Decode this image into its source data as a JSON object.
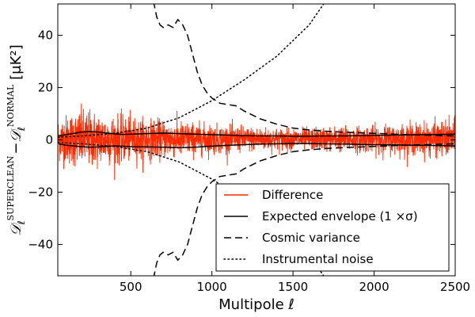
{
  "chart_data": {
    "type": "line",
    "title": "",
    "xlabel": "Multipole ℓ",
    "ylabel_parts": {
      "d1": "𝒟",
      "sup1": "SUPERCLEAN",
      "minus": "−",
      "d2": "𝒟",
      "sup2": "NORMAL",
      "sub": "ℓ",
      "unit": "[μK²]"
    },
    "xlim": [
      50,
      2500
    ],
    "ylim": [
      -52,
      52
    ],
    "xticks": [
      500,
      1000,
      1500,
      2000,
      2500
    ],
    "xtick_labels": [
      "500",
      "1000",
      "1500",
      "2000",
      "2500"
    ],
    "yticks": [
      -40,
      -20,
      0,
      20,
      40
    ],
    "ytick_labels": [
      "−40",
      "−20",
      "0",
      "20",
      "40"
    ],
    "legend_position": "lower-right",
    "series": [
      {
        "name": "Difference",
        "style": "solid",
        "color": "#ff2a00",
        "description_points": {
          "x": [
            50,
            100,
            200,
            300,
            400,
            500,
            700,
            900,
            1100,
            1300,
            1500,
            1700,
            2000,
            2300,
            2500
          ],
          "std": [
            4.0,
            4.5,
            5.5,
            5.0,
            4.5,
            4.0,
            3.5,
            3.0,
            2.5,
            2.2,
            2.0,
            2.2,
            2.5,
            3.0,
            3.5
          ]
        }
      },
      {
        "name": "Expected envelope (1 ×σ)",
        "style": "solid",
        "color": "#000000",
        "upper": {
          "x": [
            55,
            100,
            150,
            200,
            250,
            300,
            350,
            400,
            450,
            500,
            600,
            700,
            800,
            900,
            1000,
            1100,
            1200,
            1300,
            1400,
            1500,
            1600,
            1700,
            1800,
            1900,
            2000,
            2100,
            2200,
            2300,
            2400,
            2500
          ],
          "y": [
            1.5,
            2.0,
            2.5,
            3.0,
            3.2,
            3.0,
            2.6,
            2.3,
            2.1,
            2.2,
            2.4,
            2.6,
            2.4,
            2.2,
            2.0,
            1.8,
            1.6,
            1.5,
            1.5,
            1.4,
            1.4,
            1.5,
            1.5,
            1.6,
            1.7,
            1.8,
            1.9,
            2.0,
            2.1,
            2.2
          ]
        },
        "lower": {
          "x": [
            55,
            100,
            150,
            200,
            250,
            300,
            350,
            400,
            450,
            500,
            600,
            700,
            800,
            900,
            1000,
            1100,
            1200,
            1300,
            1400,
            1500,
            1600,
            1700,
            1800,
            1900,
            2000,
            2100,
            2200,
            2300,
            2400,
            2500
          ],
          "y": [
            -1.5,
            -2.0,
            -2.3,
            -2.6,
            -2.8,
            -2.7,
            -2.5,
            -2.3,
            -2.4,
            -2.6,
            -2.7,
            -2.8,
            -3.0,
            -2.8,
            -2.4,
            -2.1,
            -1.8,
            -1.6,
            -1.5,
            -1.4,
            -1.4,
            -1.5,
            -1.6,
            -1.7,
            -1.8,
            -1.9,
            -2.0,
            -2.1,
            -2.2,
            -2.3
          ]
        }
      },
      {
        "name": "Cosmic variance",
        "style": "dashed",
        "color": "#000000",
        "upper": {
          "x": [
            640,
            660,
            680,
            700,
            730,
            760,
            790,
            820,
            850,
            880,
            910,
            940,
            970,
            1000,
            1050,
            1100,
            1150,
            1200,
            1300,
            1400,
            1500,
            1600,
            1700,
            1800,
            2000,
            2200,
            2500
          ],
          "y": [
            53,
            47,
            44,
            43,
            44,
            43,
            46,
            44,
            40,
            33,
            26,
            21,
            18,
            16,
            14,
            13.5,
            13,
            11,
            8,
            6,
            4.5,
            3.8,
            3.3,
            3.0,
            2.5,
            2.0,
            1.5
          ]
        },
        "lower": {
          "x": [
            640,
            660,
            680,
            700,
            730,
            760,
            790,
            820,
            850,
            880,
            910,
            940,
            970,
            1000,
            1050,
            1100,
            1150,
            1200,
            1300,
            1400,
            1500,
            1600,
            1700,
            1800,
            2000,
            2200,
            2500
          ],
          "y": [
            -53,
            -47,
            -44,
            -43,
            -44,
            -43,
            -46,
            -44,
            -40,
            -33,
            -26,
            -21,
            -18,
            -16,
            -14,
            -13.5,
            -13,
            -11,
            -8,
            -6,
            -4.5,
            -3.8,
            -3.3,
            -3.0,
            -2.5,
            -2.0,
            -1.5
          ]
        }
      },
      {
        "name": "Instrumental noise",
        "style": "dotted",
        "color": "#000000",
        "upper": {
          "x": [
            50,
            200,
            400,
            600,
            800,
            1000,
            1200,
            1400,
            1600,
            1700
          ],
          "y": [
            1.0,
            1.5,
            2.5,
            4.5,
            8.5,
            15,
            23,
            32,
            44,
            53
          ]
        },
        "lower": {
          "x": [
            50,
            200,
            400,
            600,
            800,
            1000,
            1200,
            1400,
            1600,
            1700
          ],
          "y": [
            -1.0,
            -1.5,
            -2.5,
            -4.5,
            -8.5,
            -15,
            -23,
            -32,
            -44,
            -53
          ]
        }
      }
    ]
  }
}
